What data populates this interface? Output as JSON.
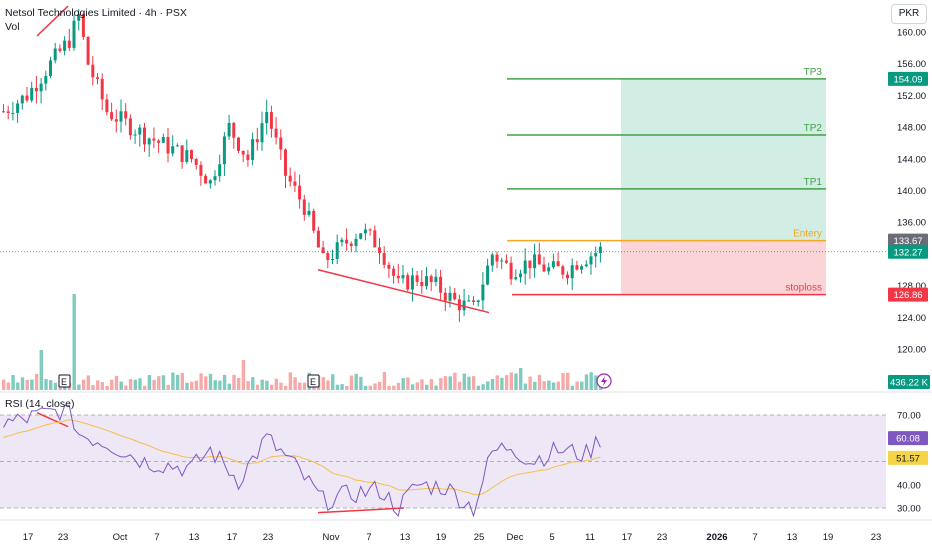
{
  "header": {
    "title": "Netsol Technologies Limited · 4h · PSX",
    "vol_label": "Vol",
    "currency": "PKR"
  },
  "chart_data": [
    {
      "type": "candlestick",
      "price_axis": {
        "ylim": [
          116.5,
          162
        ],
        "ticks": [
          120,
          124,
          128,
          132,
          136,
          140,
          144,
          148,
          152,
          156,
          160
        ]
      },
      "x_axis": {
        "labels": [
          "17",
          "23",
          "Oct",
          "7",
          "13",
          "17",
          "23",
          "Nov",
          "7",
          "13",
          "19",
          "25",
          "Dec",
          "5",
          "11",
          "17",
          "23",
          "2026",
          "7",
          "13",
          "19",
          "23"
        ]
      },
      "price_labels": [
        {
          "value": 154.09,
          "text": "154.09",
          "color": "#089981"
        },
        {
          "value": 133.67,
          "text": "133.67",
          "color": "#6a6d78"
        },
        {
          "value": 132.27,
          "text": "132.27",
          "color": "#089981"
        },
        {
          "value": 126.86,
          "text": "126.86",
          "color": "#f23645"
        }
      ],
      "volume_label": {
        "text": "436.22 K",
        "color": "#089981"
      },
      "trade_levels": [
        {
          "name": "TP3",
          "value": 154.09,
          "color": "#43a047"
        },
        {
          "name": "TP2",
          "value": 147.0,
          "color": "#43a047"
        },
        {
          "name": "TP1",
          "value": 140.2,
          "color": "#43a047"
        },
        {
          "name": "Entery",
          "value": 133.67,
          "color": "#f5a623"
        },
        {
          "name": "stoploss",
          "value": 126.86,
          "color": "#f23645"
        }
      ],
      "colors": {
        "up": "#089981",
        "down": "#f23645",
        "profit_zone": "#d1ede4",
        "loss_zone": "#fbd4d7"
      },
      "earnings_markers": [
        "E",
        "E"
      ]
    },
    {
      "type": "line",
      "title": "RSI (14, close)",
      "ylim": [
        25,
        75
      ],
      "ticks": [
        30,
        40,
        60,
        70
      ],
      "labels": [
        {
          "value": 60.08,
          "text": "60.08",
          "color": "#7e57c2"
        },
        {
          "value": 51.57,
          "text": "51.57",
          "color": "#f5d547"
        }
      ],
      "band": [
        30,
        70
      ],
      "colors": {
        "rsi": "#7e57c2",
        "ma": "#f5c04a",
        "band": "#ede7f6"
      }
    }
  ]
}
